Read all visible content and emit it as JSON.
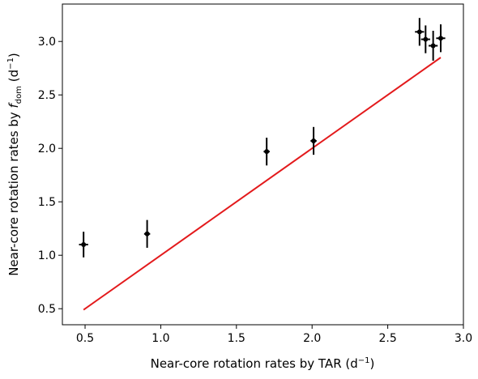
{
  "chart_data": {
    "type": "scatter",
    "xlabel": "Near-core rotation rates by TAR (d",
    "xlabel_unit_sup": "−1",
    "xlabel_close": ")",
    "ylabel_prefix": "Near-core rotation rates by ",
    "ylabel_f": "f",
    "ylabel_f_sub": "dom",
    "ylabel_unit": " (d",
    "ylabel_unit_sup": "−1",
    "ylabel_close": ")",
    "xlim": [
      0.35,
      3.0
    ],
    "ylim": [
      0.35,
      3.35
    ],
    "xticks": [
      "0.5",
      "1.0",
      "1.5",
      "2.0",
      "2.5",
      "3.0"
    ],
    "yticks": [
      "0.5",
      "1.0",
      "1.5",
      "2.0",
      "2.5",
      "3.0"
    ],
    "grid": false,
    "points": [
      {
        "x": 0.49,
        "y": 1.1,
        "yerr": 0.12,
        "xerr": 0.03
      },
      {
        "x": 0.91,
        "y": 1.2,
        "yerr": 0.13,
        "xerr": 0.02
      },
      {
        "x": 1.7,
        "y": 1.97,
        "yerr": 0.13,
        "xerr": 0.02
      },
      {
        "x": 2.01,
        "y": 2.07,
        "yerr": 0.13,
        "xerr": 0.02
      },
      {
        "x": 2.71,
        "y": 3.09,
        "yerr": 0.13,
        "xerr": 0.03
      },
      {
        "x": 2.75,
        "y": 3.02,
        "yerr": 0.13,
        "xerr": 0.03
      },
      {
        "x": 2.8,
        "y": 2.96,
        "yerr": 0.14,
        "xerr": 0.03
      },
      {
        "x": 2.85,
        "y": 3.03,
        "yerr": 0.13,
        "xerr": 0.03
      }
    ],
    "fit_line": {
      "x": [
        0.49,
        2.85
      ],
      "y": [
        0.49,
        2.85
      ],
      "color": "#e31a1c"
    },
    "marker_color": "#000000"
  }
}
